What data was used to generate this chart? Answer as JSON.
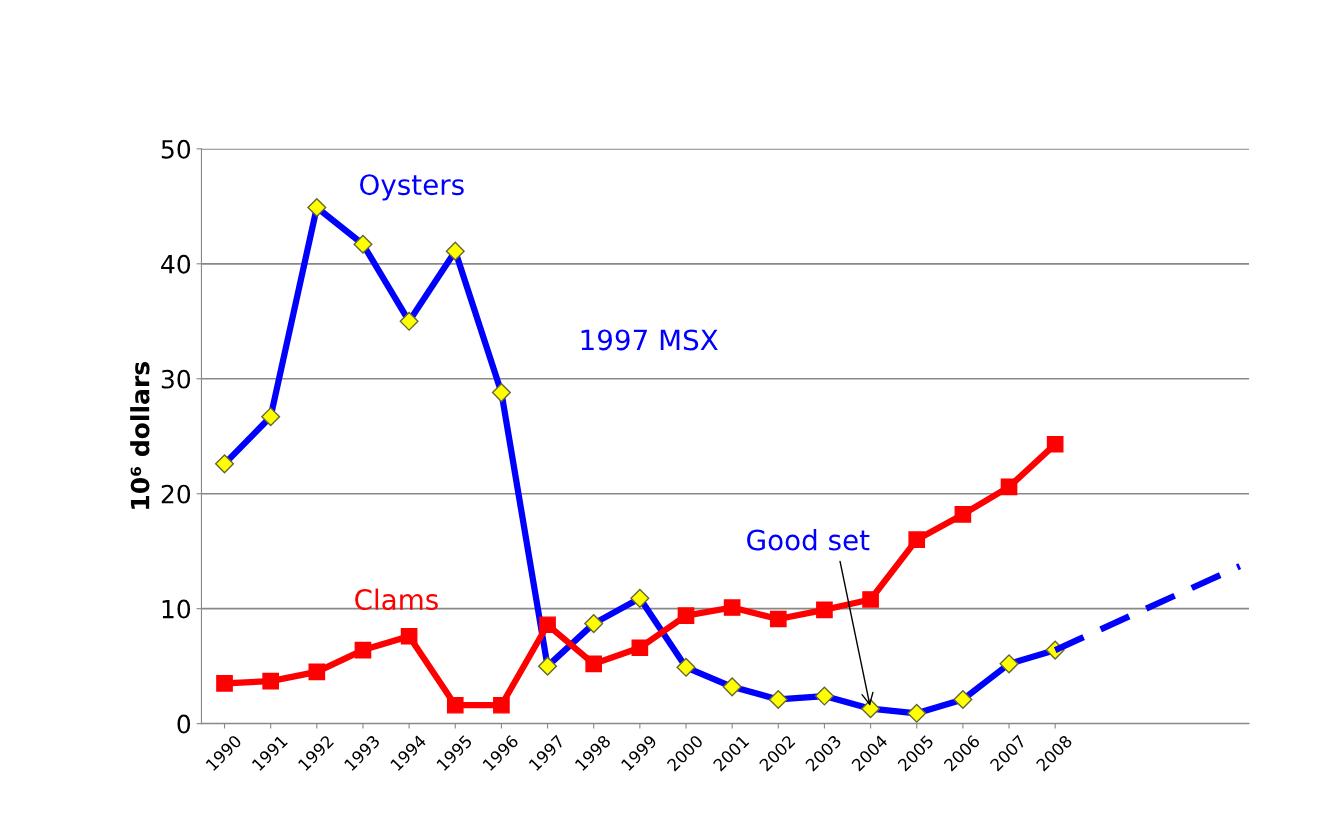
{
  "chart_data": {
    "type": "line",
    "ylabel": "10⁶ dollars",
    "x": [
      1990,
      1991,
      1992,
      1993,
      1994,
      1995,
      1996,
      1997,
      1998,
      1999,
      2000,
      2001,
      2002,
      2003,
      2004,
      2005,
      2006,
      2007,
      2008
    ],
    "series": [
      {
        "color": "#0000ff",
        "marker": "diamond",
        "line_style": "solid",
        "values": [
          22.6,
          26.7,
          44.9,
          41.7,
          35.0,
          41.1,
          28.8,
          5.0,
          8.7,
          10.9,
          4.9,
          3.2,
          2.1,
          2.4,
          1.3,
          0.9,
          2.1,
          5.2,
          6.4
        ]
      },
      {
        "color": "#ff0000",
        "marker": "square",
        "line_style": "solid",
        "values": [
          3.5,
          3.7,
          4.5,
          6.4,
          7.6,
          1.6,
          1.6,
          8.6,
          5.2,
          6.6,
          9.4,
          10.1,
          9.1,
          9.9,
          10.8,
          16.0,
          18.2,
          20.6,
          24.3
        ]
      },
      {
        "color": "#0000ff",
        "marker": "none",
        "line_style": "dashed",
        "x": [
          2008,
          2012
        ],
        "values": [
          6.4,
          13.7
        ]
      }
    ],
    "xlim": [
      1989.5,
      2012.2
    ],
    "xticks": [
      1990,
      1991,
      1992,
      1993,
      1994,
      1995,
      1996,
      1997,
      1998,
      1999,
      2000,
      2001,
      2002,
      2003,
      2004,
      2005,
      2006,
      2007,
      2008
    ],
    "ylim": [
      0,
      50
    ],
    "yticks": [
      0,
      10,
      20,
      30,
      40,
      50
    ],
    "grid": "y",
    "legend": false,
    "annotations": [
      {
        "text": "Oysters",
        "x": 1992,
        "y": 44.9
      },
      "1997 MSX",
      {
        "text": "Clams",
        "x": 1994,
        "y": 7.6
      },
      {
        "text": "Good set",
        "x": 2004,
        "y": 1.3
      }
    ]
  }
}
